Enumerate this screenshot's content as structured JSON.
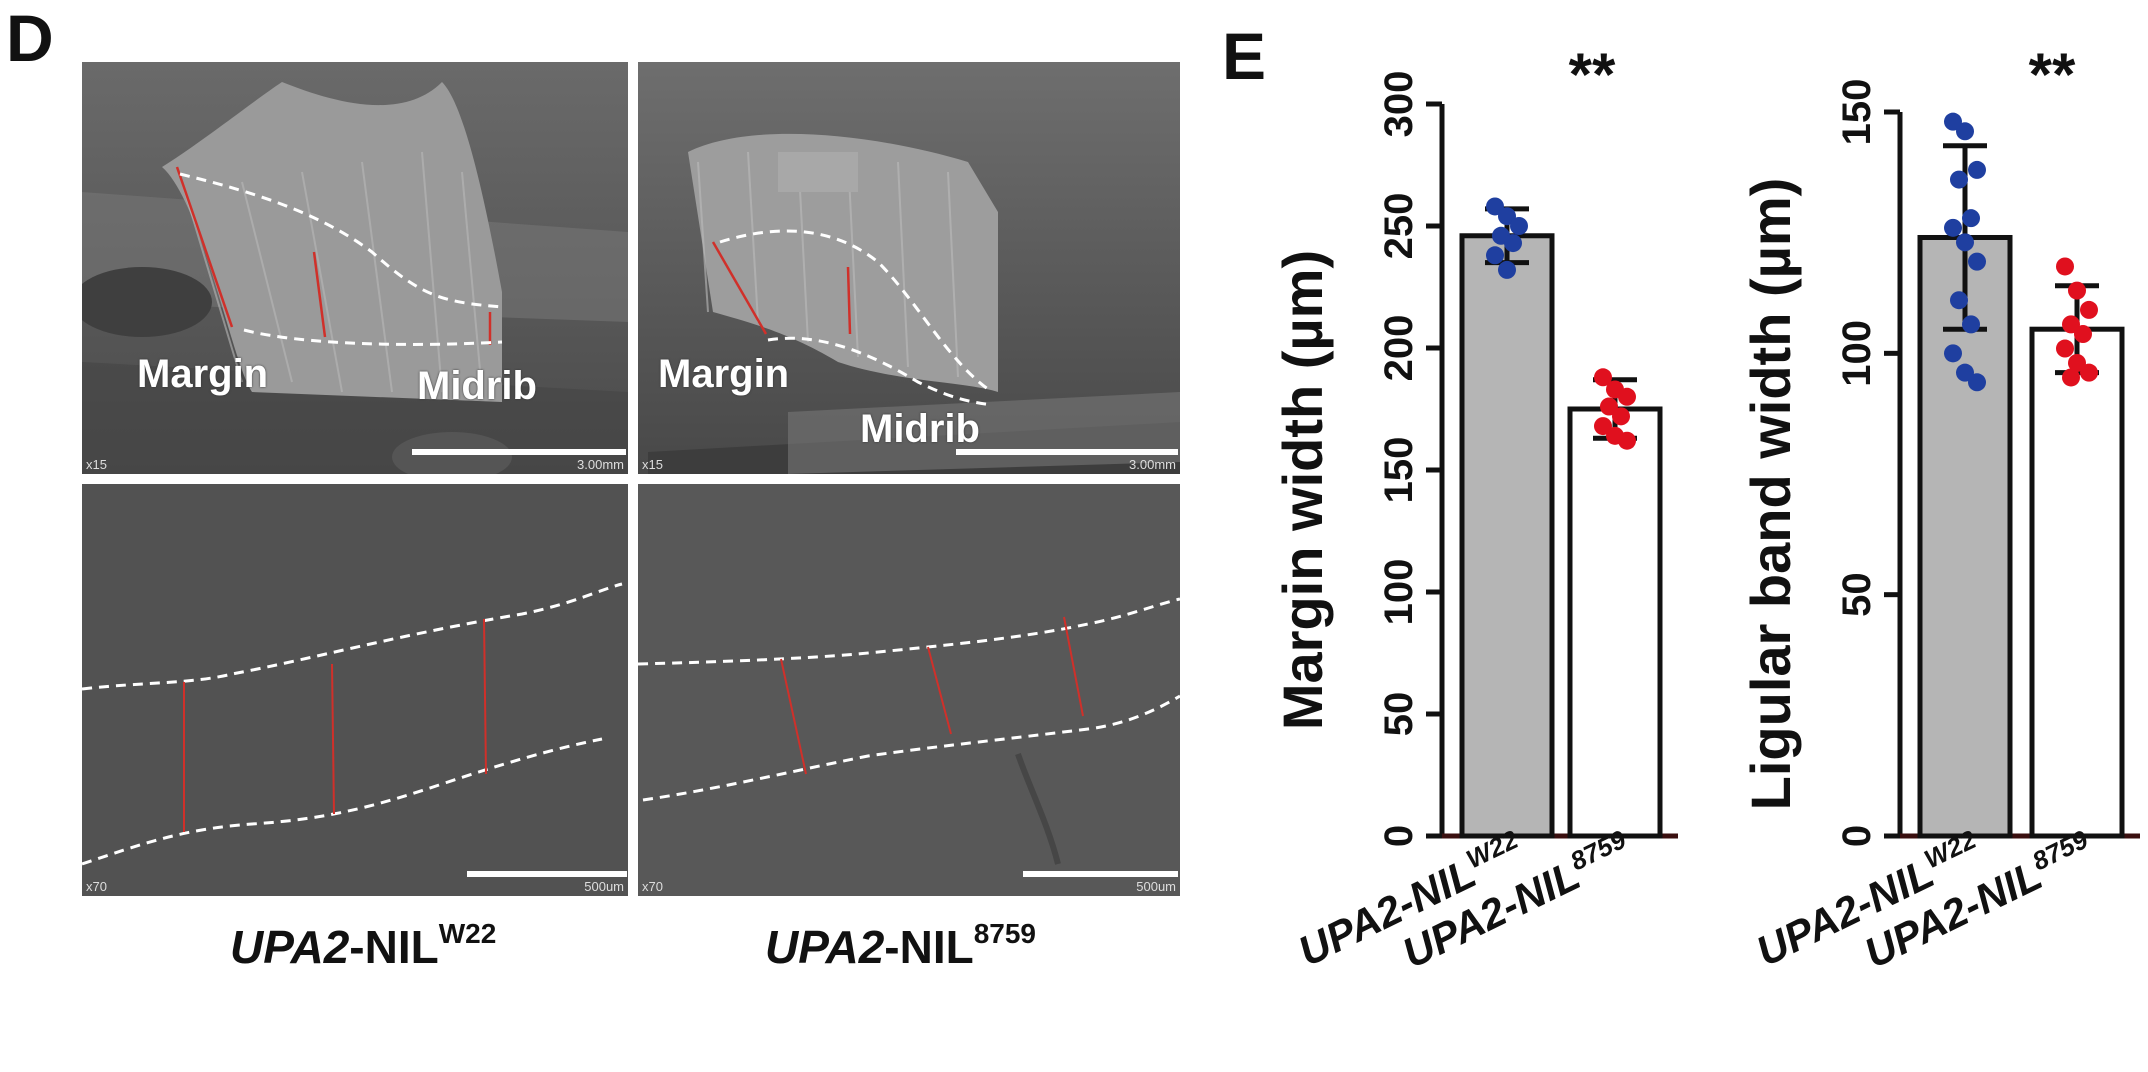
{
  "panels": {
    "d_letter": "D",
    "e_letter": "E"
  },
  "sem": {
    "top_left": {
      "labels": [
        "Margin",
        "Midrib"
      ],
      "mag": "x15",
      "scale": "3.00mm"
    },
    "top_right": {
      "labels": [
        "Margin",
        "Midrib"
      ],
      "mag": "x15",
      "scale": "3.00mm"
    },
    "bot_left": {
      "mag": "x70",
      "scale": "500um"
    },
    "bot_right": {
      "mag": "x70",
      "scale": "500um"
    }
  },
  "captions": {
    "w22": {
      "italic": "UPA2",
      "rest": "-NIL",
      "sup": "W22"
    },
    "n8759": {
      "italic": "UPA2",
      "rest": "-NIL",
      "sup": "8759"
    }
  },
  "colors": {
    "w22_bar": "#b5b5b5",
    "n8759_bar": "#ffffff",
    "w22_points": "#1f3fa0",
    "n8759_points": "#e0101e"
  },
  "chart_data": [
    {
      "type": "bar",
      "ylabel": "Margin width (µm)",
      "ylim": [
        0,
        300
      ],
      "yticks": [
        0,
        50,
        100,
        150,
        200,
        250,
        300
      ],
      "categories": [
        "UPA2-NILW22",
        "UPA2-NIL8759"
      ],
      "category_parts": [
        {
          "main": "UPA2-NIL",
          "sup": "W22"
        },
        {
          "main": "UPA2-NIL",
          "sup": "8759"
        }
      ],
      "values": [
        246,
        175
      ],
      "errors": [
        11,
        12
      ],
      "points": [
        [
          258,
          254,
          250,
          246,
          243,
          238,
          232
        ],
        [
          188,
          183,
          180,
          176,
          172,
          168,
          164,
          162
        ]
      ],
      "significance": "**"
    },
    {
      "type": "bar",
      "ylabel": "Ligular band width (µm)",
      "ylim": [
        0,
        150
      ],
      "yticks": [
        0,
        50,
        100,
        150
      ],
      "categories": [
        "UPA2-NILW22",
        "UPA2-NIL8759"
      ],
      "category_parts": [
        {
          "main": "UPA2-NIL",
          "sup": "W22"
        },
        {
          "main": "UPA2-NIL",
          "sup": "8759"
        }
      ],
      "values": [
        124,
        105
      ],
      "errors": [
        19,
        9
      ],
      "points": [
        [
          148,
          146,
          138,
          136,
          128,
          126,
          123,
          119,
          111,
          106,
          100,
          96,
          94
        ],
        [
          118,
          113,
          109,
          106,
          104,
          101,
          98,
          96,
          95
        ]
      ],
      "significance": "**"
    }
  ]
}
